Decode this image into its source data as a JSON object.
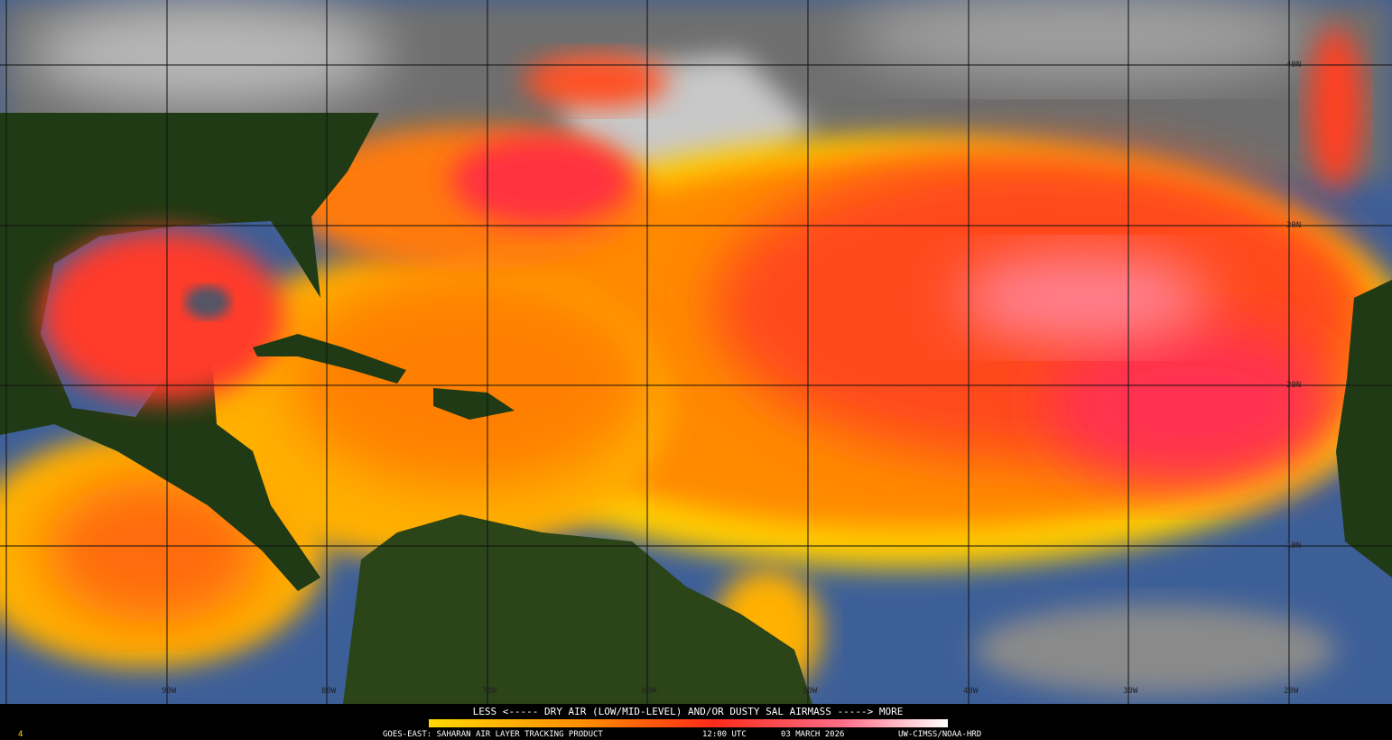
{
  "map": {
    "lat_labels": [
      "40N",
      "30N",
      "20N",
      "10N"
    ],
    "lon_labels": [
      "90W",
      "80W",
      "70W",
      "60W",
      "50W",
      "40W",
      "30W",
      "20W"
    ]
  },
  "legend": {
    "caption": "LESS <----- DRY AIR (LOW/MID-LEVEL) AND/OR DUSTY SAL AIRMASS -----> MORE"
  },
  "footer": {
    "frame": "4",
    "product": "GOES-EAST: SAHARAN AIR LAYER TRACKING PRODUCT",
    "time": "12:00 UTC",
    "date": "03 MARCH 2026",
    "credit": "UW-CIMSS/NOAA-HRD"
  }
}
